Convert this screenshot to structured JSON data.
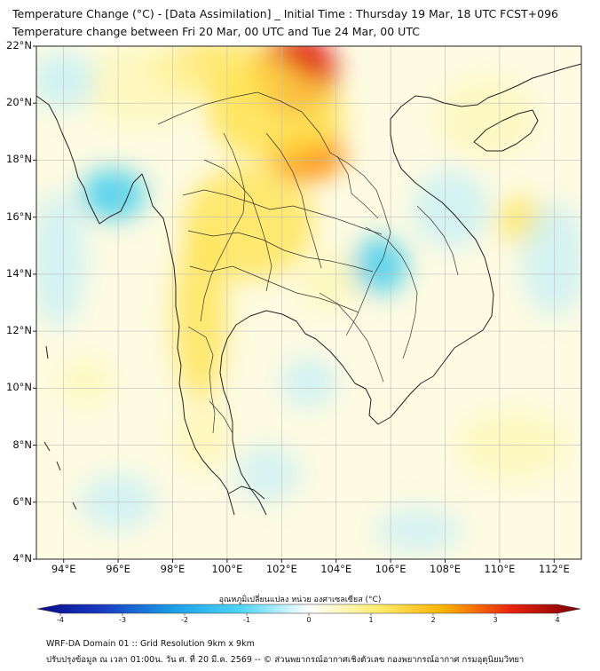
{
  "header": {
    "title_line1": "Temperature Change (°C) - [Data Assimilation] _ Initial Time : Thursday 19 Mar, 18 UTC FCST+096",
    "title_line2": "Temperature change between Fri 20 Mar, 00 UTC and Tue 24 Mar, 00 UTC"
  },
  "map": {
    "lat_range": [
      4,
      22
    ],
    "lon_range": [
      93,
      113
    ],
    "lat_labels": [
      {
        "value": 22,
        "label": "22°N"
      },
      {
        "value": 20,
        "label": "20°N"
      },
      {
        "value": 18,
        "label": "18°N"
      },
      {
        "value": 16,
        "label": "16°N"
      },
      {
        "value": 14,
        "label": "14°N"
      },
      {
        "value": 12,
        "label": "12°N"
      },
      {
        "value": 10,
        "label": "10°N"
      },
      {
        "value": 8,
        "label": "8°N"
      },
      {
        "value": 6,
        "label": "6°N"
      },
      {
        "value": 4,
        "label": "4°N"
      }
    ],
    "lon_labels": [
      {
        "value": 94,
        "label": "94°E"
      },
      {
        "value": 96,
        "label": "96°E"
      },
      {
        "value": 98,
        "label": "98°E"
      },
      {
        "value": 100,
        "label": "100°E"
      },
      {
        "value": 102,
        "label": "102°E"
      },
      {
        "value": 104,
        "label": "104°E"
      },
      {
        "value": 106,
        "label": "106°E"
      },
      {
        "value": 108,
        "label": "108°E"
      },
      {
        "value": 110,
        "label": "110°E"
      },
      {
        "value": 112,
        "label": "112°E"
      }
    ],
    "field_blobs": [
      {
        "lon": 102.5,
        "lat": 21.0,
        "rx": 1.5,
        "ry": 1.4,
        "delta": 2.5
      },
      {
        "lon": 102.9,
        "lat": 18.2,
        "rx": 1.4,
        "ry": 0.9,
        "delta": 2.0
      },
      {
        "lon": 101.8,
        "lat": 19.6,
        "rx": 2.5,
        "ry": 1.6,
        "delta": 1.4
      },
      {
        "lon": 99.8,
        "lat": 21.2,
        "rx": 2.6,
        "ry": 1.0,
        "delta": 1.0
      },
      {
        "lon": 100.8,
        "lat": 15.8,
        "rx": 2.4,
        "ry": 2.0,
        "delta": 1.0
      },
      {
        "lon": 99.0,
        "lat": 12.5,
        "rx": 1.0,
        "ry": 3.0,
        "delta": 1.0
      },
      {
        "lon": 99.1,
        "lat": 8.3,
        "rx": 1.0,
        "ry": 1.2,
        "delta": 0.9
      },
      {
        "lon": 103.8,
        "lat": 13.8,
        "rx": 1.2,
        "ry": 1.0,
        "delta": 0.8
      },
      {
        "lon": 110.8,
        "lat": 15.9,
        "rx": 0.9,
        "ry": 0.8,
        "delta": 1.1
      },
      {
        "lon": 109.5,
        "lat": 19.5,
        "rx": 1.8,
        "ry": 1.4,
        "delta": 0.5
      },
      {
        "lon": 94.8,
        "lat": 10.2,
        "rx": 1.0,
        "ry": 0.8,
        "delta": 0.7
      },
      {
        "lon": 110.5,
        "lat": 8.0,
        "rx": 2.0,
        "ry": 1.2,
        "delta": 0.6
      },
      {
        "lon": 96.8,
        "lat": 20.6,
        "rx": 2.2,
        "ry": 1.4,
        "delta": 0.6
      },
      {
        "lon": 95.8,
        "lat": 16.8,
        "rx": 1.2,
        "ry": 0.9,
        "delta": -1.1
      },
      {
        "lon": 105.6,
        "lat": 14.3,
        "rx": 1.0,
        "ry": 1.0,
        "delta": -1.1
      },
      {
        "lon": 103.0,
        "lat": 10.2,
        "rx": 1.0,
        "ry": 0.9,
        "delta": -0.8
      },
      {
        "lon": 94.0,
        "lat": 20.8,
        "rx": 1.2,
        "ry": 1.0,
        "delta": -0.9
      },
      {
        "lon": 93.8,
        "lat": 14.5,
        "rx": 1.0,
        "ry": 2.4,
        "delta": -0.6
      },
      {
        "lon": 108.2,
        "lat": 16.3,
        "rx": 1.4,
        "ry": 1.4,
        "delta": -0.6
      },
      {
        "lon": 112.0,
        "lat": 14.5,
        "rx": 1.2,
        "ry": 2.0,
        "delta": -0.5
      },
      {
        "lon": 96.0,
        "lat": 6.0,
        "rx": 1.4,
        "ry": 1.0,
        "delta": -0.5
      },
      {
        "lon": 101.5,
        "lat": 7.0,
        "rx": 1.2,
        "ry": 1.0,
        "delta": -0.4
      },
      {
        "lon": 107.0,
        "lat": 5.0,
        "rx": 1.6,
        "ry": 0.8,
        "delta": -0.4
      }
    ]
  },
  "colorbar": {
    "label": "อุณหภูมิเปลี่ยนแปลง หน่วย องศาเซลเซียส (°C)",
    "range": [
      -4,
      4
    ],
    "ticks": [
      {
        "value": -4,
        "label": "-4"
      },
      {
        "value": -3,
        "label": "-3"
      },
      {
        "value": -2,
        "label": "-2"
      },
      {
        "value": -1,
        "label": "-1"
      },
      {
        "value": 0,
        "label": "0"
      },
      {
        "value": 1,
        "label": "1"
      },
      {
        "value": 2,
        "label": "2"
      },
      {
        "value": 3,
        "label": "3"
      },
      {
        "value": 4,
        "label": "4"
      }
    ],
    "colors": {
      "neg_dark": "#0a0a8a",
      "neg_mid": "#1a5ee6",
      "neg_light": "#2ec8f0",
      "neg_pale": "#bfeefa",
      "zero": "#ffffff",
      "pos_pale": "#fff6b0",
      "pos_light": "#ffe24a",
      "pos_mid": "#ff8a00",
      "pos_dark": "#e01010",
      "pos_darkest": "#7a0000"
    }
  },
  "footer": {
    "line1": "WRF-DA Domain 01 :: Grid Resolution 9km x 9km",
    "line2": "ปรับปรุงข้อมูล ณ เวลา 01:00น. วัน ศ. ที่ 20 มี.ค. 2569 -- © ส่วนพยากรณ์อากาศเชิงตัวเลข กองพยากรณ์อากาศ กรมอุตุนิยมวิทยา"
  }
}
